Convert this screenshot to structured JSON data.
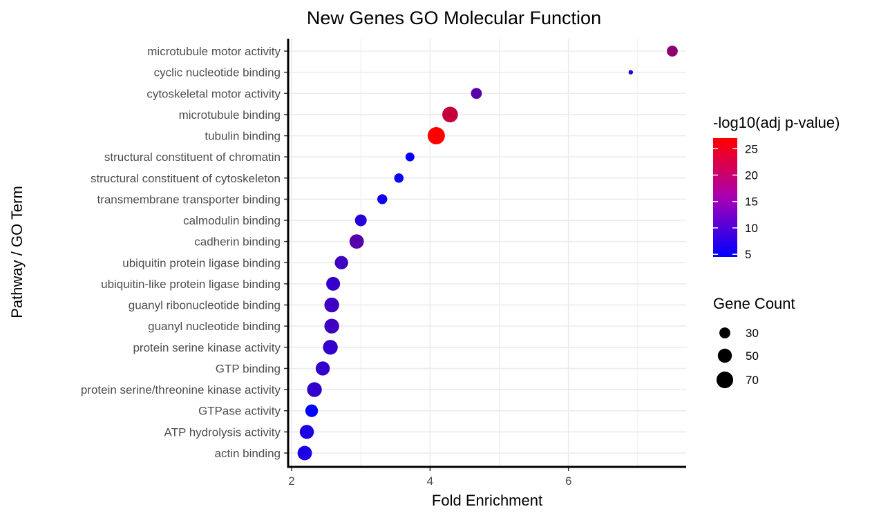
{
  "chart_data": {
    "type": "scatter",
    "title": "New Genes GO Molecular Function",
    "xlabel": "Fold Enrichment",
    "ylabel": "Pathway / GO Term",
    "xlim": [
      1.95,
      7.7
    ],
    "x_ticks": [
      2,
      4,
      6
    ],
    "x_tick_labels": [
      "2",
      "4",
      "6"
    ],
    "grid": true,
    "legend_placement": "right",
    "color_scale": {
      "title": "-log10(adj p-value)",
      "low_color": "#0000ff",
      "high_color": "#ff0000",
      "min": 4.5,
      "max": 27,
      "breaks": [
        5,
        10,
        15,
        20,
        25
      ],
      "break_labels": [
        "5",
        "10",
        "15",
        "20",
        "25"
      ]
    },
    "size_scale": {
      "title": "Gene Count",
      "breaks": [
        30,
        50,
        70
      ],
      "break_labels": [
        "30",
        "50",
        "70"
      ]
    },
    "terms": [
      {
        "term": "microtubule motor activity",
        "fold_enrichment": 7.5,
        "neg_log10_padj": 17,
        "gene_count": 30
      },
      {
        "term": "cyclic nucleotide binding",
        "fold_enrichment": 6.9,
        "neg_log10_padj": 8,
        "gene_count": 5
      },
      {
        "term": "cytoskeletal motor activity",
        "fold_enrichment": 4.67,
        "neg_log10_padj": 12,
        "gene_count": 30
      },
      {
        "term": "microtubule binding",
        "fold_enrichment": 4.29,
        "neg_log10_padj": 22,
        "gene_count": 62
      },
      {
        "term": "tubulin binding",
        "fold_enrichment": 4.09,
        "neg_log10_padj": 27,
        "gene_count": 75
      },
      {
        "term": "structural constituent of chromatin",
        "fold_enrichment": 3.71,
        "neg_log10_padj": 5,
        "gene_count": 20
      },
      {
        "term": "structural constituent of cytoskeleton",
        "fold_enrichment": 3.55,
        "neg_log10_padj": 5.5,
        "gene_count": 22
      },
      {
        "term": "transmembrane transporter binding",
        "fold_enrichment": 3.31,
        "neg_log10_padj": 6,
        "gene_count": 25
      },
      {
        "term": "calmodulin binding",
        "fold_enrichment": 3.0,
        "neg_log10_padj": 8,
        "gene_count": 35
      },
      {
        "term": "cadherin binding",
        "fold_enrichment": 2.94,
        "neg_log10_padj": 12,
        "gene_count": 52
      },
      {
        "term": "ubiquitin protein ligase binding",
        "fold_enrichment": 2.72,
        "neg_log10_padj": 10,
        "gene_count": 45
      },
      {
        "term": "ubiquitin-like protein ligase binding",
        "fold_enrichment": 2.6,
        "neg_log10_padj": 9,
        "gene_count": 48
      },
      {
        "term": "guanyl ribonucleotide binding",
        "fold_enrichment": 2.58,
        "neg_log10_padj": 10,
        "gene_count": 55
      },
      {
        "term": "guanyl nucleotide binding",
        "fold_enrichment": 2.58,
        "neg_log10_padj": 10,
        "gene_count": 55
      },
      {
        "term": "protein serine kinase activity",
        "fold_enrichment": 2.56,
        "neg_log10_padj": 9,
        "gene_count": 55
      },
      {
        "term": "GTP binding",
        "fold_enrichment": 2.45,
        "neg_log10_padj": 9,
        "gene_count": 50
      },
      {
        "term": "protein serine/threonine kinase activity",
        "fold_enrichment": 2.33,
        "neg_log10_padj": 9,
        "gene_count": 55
      },
      {
        "term": "GTPase activity",
        "fold_enrichment": 2.29,
        "neg_log10_padj": 4.5,
        "gene_count": 40
      },
      {
        "term": "ATP hydrolysis activity",
        "fold_enrichment": 2.22,
        "neg_log10_padj": 7,
        "gene_count": 50
      },
      {
        "term": "actin binding",
        "fold_enrichment": 2.19,
        "neg_log10_padj": 7,
        "gene_count": 52
      }
    ]
  }
}
